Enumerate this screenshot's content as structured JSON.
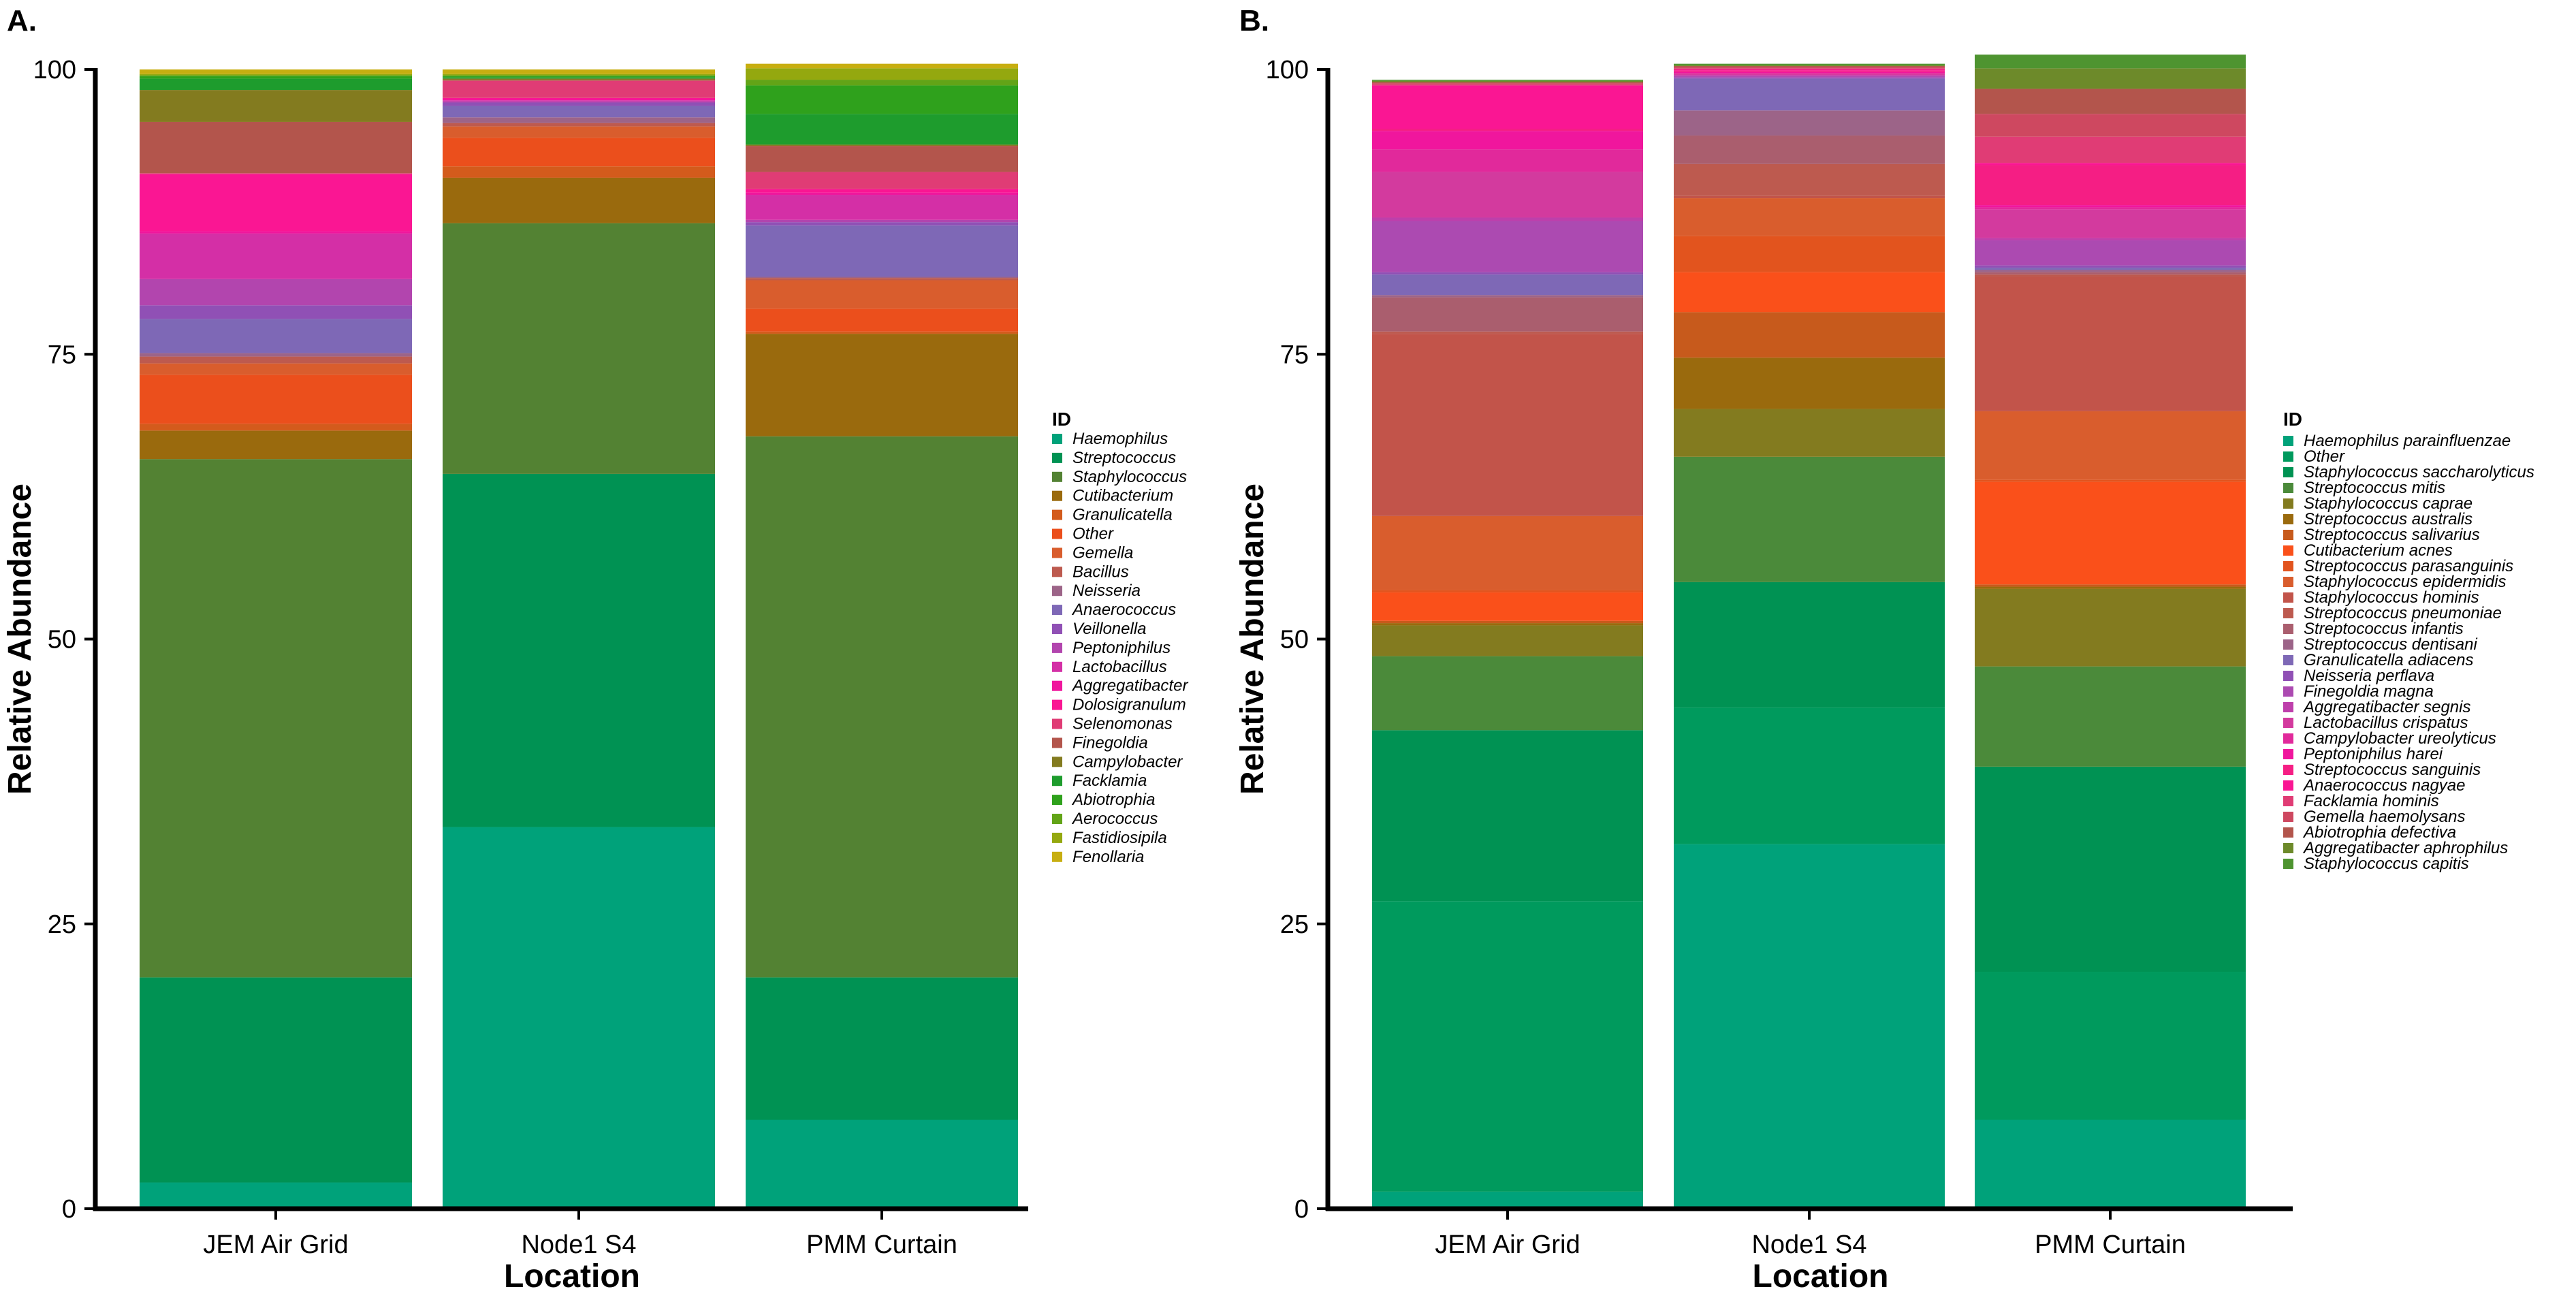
{
  "chart_data": [
    {
      "type": "bar",
      "stacked": true,
      "panel_label": "A.",
      "title": "",
      "xlabel": "Location",
      "ylabel": "Relative Abundance",
      "ylim": [
        0,
        100
      ],
      "yticks": [
        0,
        25,
        50,
        75,
        100
      ],
      "categories": [
        "JEM Air Grid",
        "Node1 S4",
        "PMM Curtain"
      ],
      "legend_title": "ID",
      "legend_position": "right",
      "series": [
        {
          "name": "Haemophilus",
          "color": "#00A27A",
          "values": [
            2.3,
            33.5,
            7.8
          ]
        },
        {
          "name": "Streptococcus",
          "color": "#009253",
          "values": [
            18.0,
            31.0,
            12.5
          ]
        },
        {
          "name": "Staphylococcus",
          "color": "#538233",
          "values": [
            45.5,
            22.0,
            47.5
          ]
        },
        {
          "name": "Cutibacterium",
          "color": "#9A6A0D",
          "values": [
            2.5,
            4.0,
            9.0
          ]
        },
        {
          "name": "Granulicatella",
          "color": "#D35B1C",
          "values": [
            0.6,
            1.0,
            0.2
          ]
        },
        {
          "name": "Other",
          "color": "#EB4F1C",
          "values": [
            4.3,
            2.5,
            2.0
          ]
        },
        {
          "name": "Gemella",
          "color": "#D95D2D",
          "values": [
            1.0,
            1.0,
            2.5
          ]
        },
        {
          "name": "Bacillus",
          "color": "#BD5A4F",
          "values": [
            0.6,
            0.3,
            0.2
          ]
        },
        {
          "name": "Neisseria",
          "color": "#9C6488",
          "values": [
            0.3,
            0.5,
            0.1
          ]
        },
        {
          "name": "Anaerococcus",
          "color": "#7E68B6",
          "values": [
            3.0,
            1.0,
            4.5
          ]
        },
        {
          "name": "Veillonella",
          "color": "#9050B5",
          "values": [
            1.2,
            0.3,
            0.3
          ]
        },
        {
          "name": "Peptoniphilus",
          "color": "#B245AE",
          "values": [
            2.3,
            0.1,
            0.2
          ]
        },
        {
          "name": "Lactobacillus",
          "color": "#D42FA6",
          "values": [
            4.0,
            0.1,
            2.2
          ]
        },
        {
          "name": "Aggregatibacter",
          "color": "#F0169D",
          "values": [
            0.2,
            0.1,
            0.2
          ]
        },
        {
          "name": "Dolosigranulum",
          "color": "#FA1693",
          "values": [
            5.0,
            0.1,
            0.3
          ]
        },
        {
          "name": "Selenomonas",
          "color": "#E03C75",
          "values": [
            0.1,
            1.5,
            1.5
          ]
        },
        {
          "name": "Finegoldia",
          "color": "#B3554C",
          "values": [
            4.5,
            0.1,
            2.3
          ]
        },
        {
          "name": "Campylobacter",
          "color": "#837B1F",
          "values": [
            2.8,
            0.1,
            0.1
          ]
        },
        {
          "name": "Facklamia",
          "color": "#1E9C2D",
          "values": [
            1.0,
            0.1,
            2.7
          ]
        },
        {
          "name": "Abiotrophia",
          "color": "#2FA11C",
          "values": [
            0.2,
            0.1,
            2.5
          ]
        },
        {
          "name": "Aerococcus",
          "color": "#62A417",
          "values": [
            0.1,
            0.1,
            0.5
          ]
        },
        {
          "name": "Fastidiosipila",
          "color": "#94A80F",
          "values": [
            0.1,
            0.1,
            1.0
          ]
        },
        {
          "name": "Fenollaria",
          "color": "#C7AE10",
          "values": [
            0.4,
            0.4,
            0.4
          ]
        }
      ]
    },
    {
      "type": "bar",
      "stacked": true,
      "panel_label": "B.",
      "title": "",
      "xlabel": "Location",
      "ylabel": "Relative Abundance",
      "ylim": [
        0,
        100
      ],
      "yticks": [
        0,
        25,
        50,
        75,
        100
      ],
      "categories": [
        "JEM Air Grid",
        "Node1 S4",
        "PMM Curtain"
      ],
      "legend_title": "ID",
      "legend_position": "right",
      "series": [
        {
          "name": "Haemophilus parainfluenzae",
          "color": "#00A27A",
          "values": [
            1.5,
            32.0,
            7.8
          ]
        },
        {
          "name": "Other",
          "color": "#009A5D",
          "values": [
            25.5,
            12.0,
            13.0
          ]
        },
        {
          "name": "Staphylococcus saccharolyticus",
          "color": "#009253",
          "values": [
            15.0,
            11.0,
            18.0
          ]
        },
        {
          "name": "Streptococcus mitis",
          "color": "#4B8A3A",
          "values": [
            6.5,
            11.0,
            8.8
          ]
        },
        {
          "name": "Staphylococcus caprae",
          "color": "#837B1F",
          "values": [
            2.7,
            4.2,
            6.8
          ]
        },
        {
          "name": "Streptococcus australis",
          "color": "#9A6A0D",
          "values": [
            0.2,
            4.5,
            0.2
          ]
        },
        {
          "name": "Streptococcus salivarius",
          "color": "#C75A1C",
          "values": [
            0.2,
            4.0,
            0.2
          ]
        },
        {
          "name": "Cutibacterium acnes",
          "color": "#FA501A",
          "values": [
            2.5,
            3.5,
            9.0
          ]
        },
        {
          "name": "Streptococcus parasanguinis",
          "color": "#E2541E",
          "values": [
            0.2,
            3.2,
            0.2
          ]
        },
        {
          "name": "Staphylococcus epidermidis",
          "color": "#D95D2D",
          "values": [
            6.5,
            3.3,
            6.0
          ]
        },
        {
          "name": "Staphylococcus hominis",
          "color": "#C2544A",
          "values": [
            16.0,
            0.2,
            11.8
          ]
        },
        {
          "name": "Streptococcus pneumoniae",
          "color": "#BD5A4F",
          "values": [
            0.2,
            2.8,
            0.2
          ]
        },
        {
          "name": "Streptococcus infantis",
          "color": "#AA5E6E",
          "values": [
            3.0,
            2.5,
            0.2
          ]
        },
        {
          "name": "Streptococcus dentisani",
          "color": "#9C6488",
          "values": [
            0.2,
            2.2,
            0.2
          ]
        },
        {
          "name": "Granulicatella adiacens",
          "color": "#7E68B6",
          "values": [
            1.8,
            2.8,
            0.2
          ]
        },
        {
          "name": "Neisseria perflava",
          "color": "#9050B5",
          "values": [
            0.2,
            0.1,
            0.2
          ]
        },
        {
          "name": "Finegoldia magna",
          "color": "#AC4AB1",
          "values": [
            4.5,
            0.1,
            2.2
          ]
        },
        {
          "name": "Aggregatibacter segnis",
          "color": "#BE3FAB",
          "values": [
            0.3,
            0.1,
            0.2
          ]
        },
        {
          "name": "Lactobacillus crispatus",
          "color": "#D33A9E",
          "values": [
            4.0,
            0.1,
            2.5
          ]
        },
        {
          "name": "Campylobacter ureolyticus",
          "color": "#E1299B",
          "values": [
            2.0,
            0.1,
            0.2
          ]
        },
        {
          "name": "Peptoniphilus harei",
          "color": "#F0169D",
          "values": [
            1.6,
            0.1,
            0.2
          ]
        },
        {
          "name": "Streptococcus sanguinis",
          "color": "#F51E84",
          "values": [
            0.2,
            0.1,
            3.5
          ]
        },
        {
          "name": "Anaerococcus nagyae",
          "color": "#FA1693",
          "values": [
            3.8,
            0.1,
            0.2
          ]
        },
        {
          "name": "Facklamia hominis",
          "color": "#E03C75",
          "values": [
            0.1,
            0.1,
            2.3
          ]
        },
        {
          "name": "Gemella haemolysans",
          "color": "#CE4860",
          "values": [
            0.1,
            0.1,
            2.0
          ]
        },
        {
          "name": "Abiotrophia defectiva",
          "color": "#B3554C",
          "values": [
            0.1,
            0.1,
            2.2
          ]
        },
        {
          "name": "Aggregatibacter aphrophilus",
          "color": "#6D8A2A",
          "values": [
            0.1,
            0.1,
            1.8
          ]
        },
        {
          "name": "Staphylococcus capitis",
          "color": "#4E9430",
          "values": [
            0.1,
            0.1,
            1.2
          ]
        }
      ]
    }
  ]
}
